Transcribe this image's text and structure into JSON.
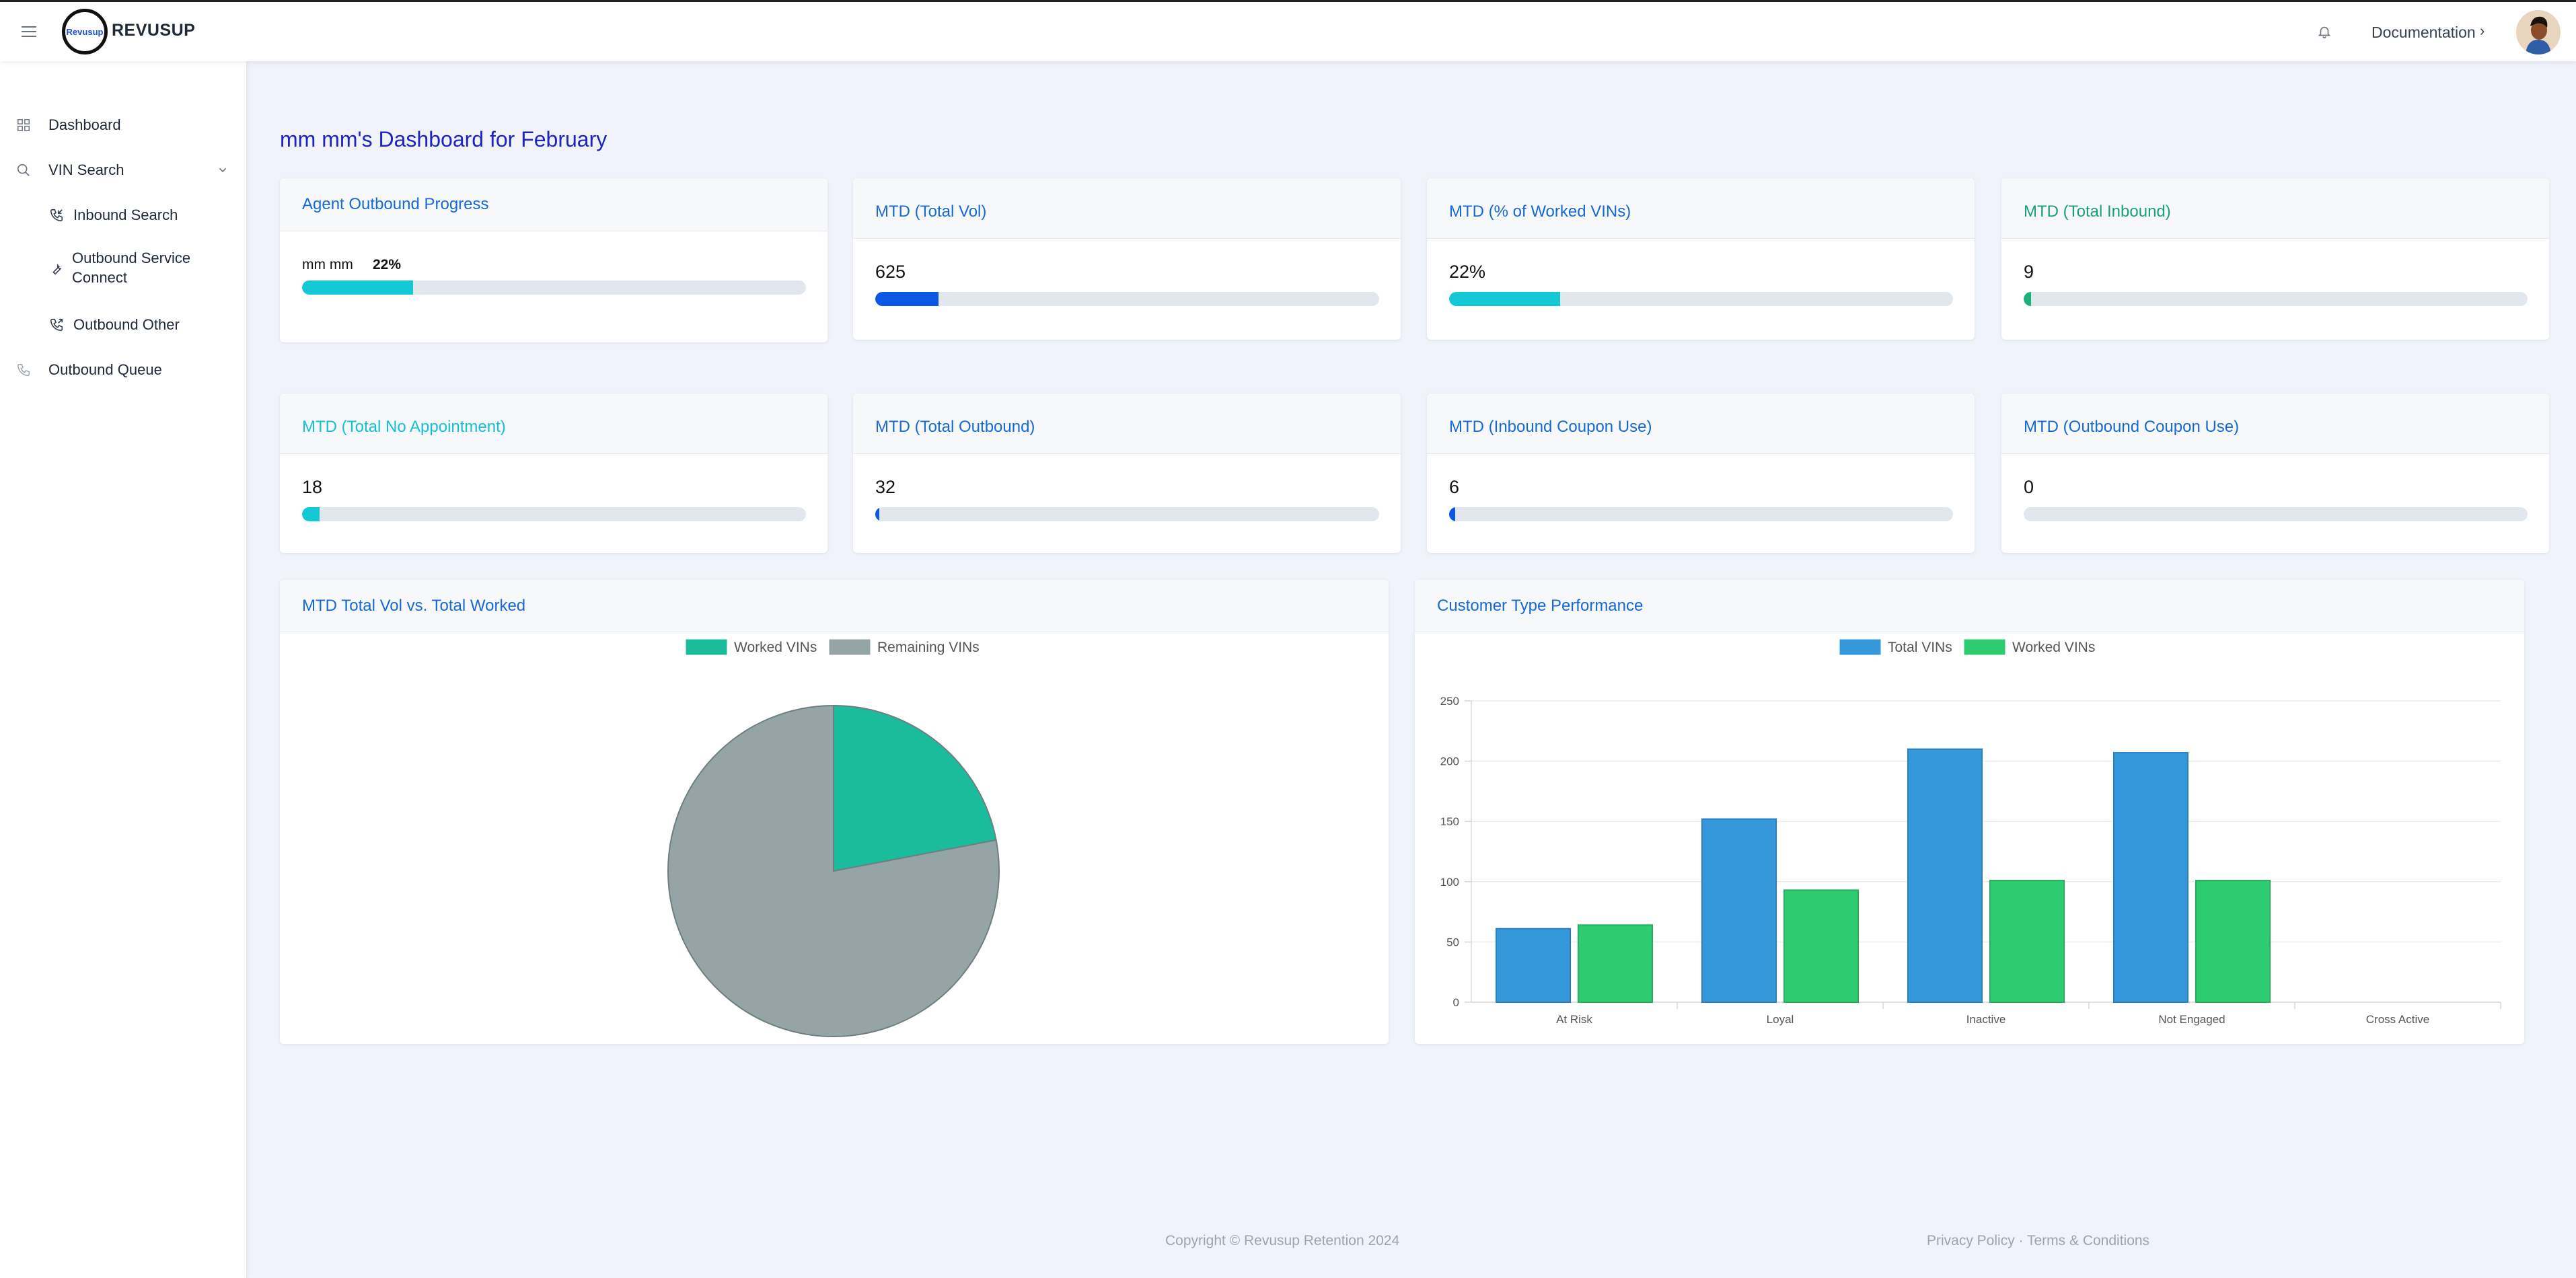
{
  "header": {
    "brand": "REVUSUP",
    "logo_text": "Revusup",
    "documentation_label": "Documentation",
    "chevron": "›"
  },
  "sidebar": {
    "items": [
      {
        "label": "Dashboard",
        "icon": "grid-icon"
      },
      {
        "label": "VIN Search",
        "icon": "search-icon"
      },
      {
        "label": "Inbound Search",
        "icon": "phone-incoming-icon"
      },
      {
        "label": "Outbound Service Connect",
        "icon": "wrench-icon"
      },
      {
        "label": "Outbound Other",
        "icon": "phone-outgoing-icon"
      },
      {
        "label": "Outbound Queue",
        "icon": "phone-icon"
      }
    ]
  },
  "page_title": "mm mm's Dashboard for February",
  "agent_card": {
    "title": "Agent Outbound Progress",
    "agent_name": "mm mm",
    "percent_label": "22%",
    "progress": 0.22,
    "color": "#13c9d6"
  },
  "stat_cards": [
    {
      "title": "MTD (Total Vol)",
      "value": "625",
      "progress": 0.125,
      "color": "#0d56e6",
      "title_color": "#1669d6"
    },
    {
      "title": "MTD (% of Worked VINs)",
      "value": "22%",
      "progress": 0.22,
      "color": "#13c9d6",
      "title_color": "#1669d6"
    },
    {
      "title": "MTD (Total Inbound)",
      "value": "9",
      "progress": 0.015,
      "color": "#1ab17a",
      "title_color": "#1aa179"
    },
    {
      "title": "MTD (Total No Appointment)",
      "value": "18",
      "progress": 0.035,
      "color": "#13c9d6",
      "title_color": "#13c0d6"
    },
    {
      "title": "MTD (Total Outbound)",
      "value": "32",
      "progress": 0.008,
      "color": "#0d56e6",
      "title_color": "#1669d6"
    },
    {
      "title": "MTD (Inbound Coupon Use)",
      "value": "6",
      "progress": 0.012,
      "color": "#0d56e6",
      "title_color": "#1669d6"
    },
    {
      "title": "MTD (Outbound Coupon Use)",
      "value": "0",
      "progress": 0,
      "color": "#0d56e6",
      "title_color": "#1669d6"
    }
  ],
  "pie_card": {
    "title": "MTD Total Vol vs. Total Worked"
  },
  "bar_card": {
    "title": "Customer Type Performance"
  },
  "chart_data": [
    {
      "type": "pie",
      "labels": [
        "Worked VINs",
        "Remaining VINs"
      ],
      "values": [
        22,
        78
      ],
      "colors": [
        "#1abc9c",
        "#95a5a6"
      ],
      "legend": "top"
    },
    {
      "type": "bar",
      "categories": [
        "At Risk",
        "Loyal",
        "Inactive",
        "Not Engaged",
        "Cross Active"
      ],
      "series": [
        {
          "name": "Total VINs",
          "values": [
            61,
            152,
            210,
            207,
            0
          ],
          "color": "#3498db"
        },
        {
          "name": "Worked VINs",
          "values": [
            64,
            93,
            101,
            101,
            0
          ],
          "color": "#2ecc71"
        }
      ],
      "yticks": [
        0,
        50,
        100,
        150,
        200,
        250
      ],
      "ylim": [
        0,
        250
      ],
      "grid": true,
      "legend": "top"
    }
  ],
  "footer": {
    "copyright": "Copyright © Revusup Retention 2024",
    "links": "Privacy Policy · Terms & Conditions"
  }
}
